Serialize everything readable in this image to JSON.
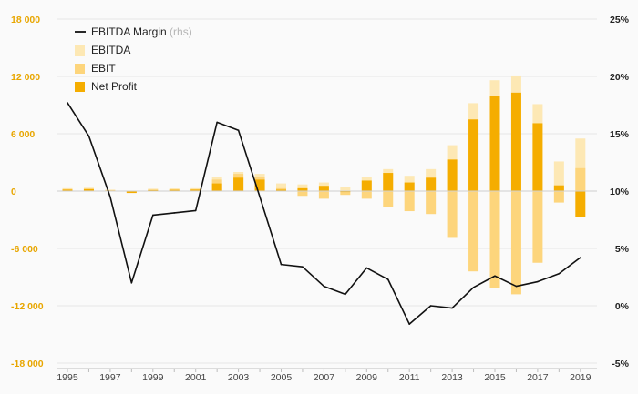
{
  "chart_data": {
    "type": "bar",
    "x": [
      1995,
      1996,
      1997,
      1998,
      1999,
      2000,
      2001,
      2002,
      2003,
      2004,
      2005,
      2006,
      2007,
      2008,
      2009,
      2010,
      2011,
      2012,
      2013,
      2014,
      2015,
      2016,
      2017,
      2018,
      2019
    ],
    "x_tick_labels": [
      "1995",
      "1997",
      "1999",
      "2001",
      "2003",
      "2005",
      "2007",
      "2009",
      "2011",
      "2013",
      "2015",
      "2017",
      "2019"
    ],
    "y_left": {
      "ylim": [
        -18000,
        18000
      ],
      "ticks": [
        18000,
        12000,
        6000,
        0,
        -6000,
        -12000,
        -18000
      ],
      "tick_labels": [
        "18 000",
        "12 000",
        "6 000",
        "0",
        "-6 000",
        "-12 000",
        "-18 000"
      ]
    },
    "y_right": {
      "ylim": [
        -5,
        25
      ],
      "ticks": [
        25,
        20,
        15,
        10,
        5,
        0,
        -5
      ],
      "tick_labels": [
        "25%",
        "20%",
        "15%",
        "10%",
        "5%",
        "0%",
        "-5%"
      ]
    },
    "legend_position": "top-left",
    "series": [
      {
        "name": "EBITDA",
        "kind": "bar",
        "color": "#fde8b4",
        "values": [
          300,
          350,
          150,
          -100,
          250,
          280,
          300,
          1500,
          2000,
          1800,
          800,
          700,
          900,
          450,
          1500,
          2300,
          1600,
          2300,
          4800,
          9200,
          11600,
          12100,
          9100,
          3100,
          5500
        ]
      },
      {
        "name": "EBIT",
        "kind": "bar",
        "color": "#fdd57c",
        "values": [
          200,
          250,
          100,
          -150,
          150,
          170,
          200,
          1200,
          1800,
          1500,
          300,
          -500,
          -800,
          -400,
          -800,
          -1700,
          -2100,
          -2400,
          -4900,
          -8400,
          -10100,
          -10800,
          -7500,
          -1200,
          2400
        ]
      },
      {
        "name": "Net Profit",
        "kind": "bar",
        "color": "#f5ad00",
        "values": [
          150,
          200,
          50,
          -200,
          100,
          130,
          150,
          800,
          1400,
          1200,
          150,
          300,
          550,
          -100,
          1100,
          1900,
          900,
          1400,
          3300,
          7500,
          10000,
          10300,
          7100,
          600,
          -2700
        ]
      },
      {
        "name": "EBITDA Margin",
        "kind": "line",
        "axis": "right",
        "color": "#111111",
        "note": "(rhs)",
        "values": [
          17.7,
          14.8,
          9.5,
          2.0,
          7.9,
          8.1,
          8.3,
          16.0,
          15.3,
          9.5,
          3.6,
          3.4,
          1.7,
          1.0,
          3.3,
          2.3,
          -1.6,
          0.0,
          -0.2,
          1.6,
          2.6,
          1.7,
          2.1,
          2.8,
          4.2
        ]
      }
    ]
  }
}
